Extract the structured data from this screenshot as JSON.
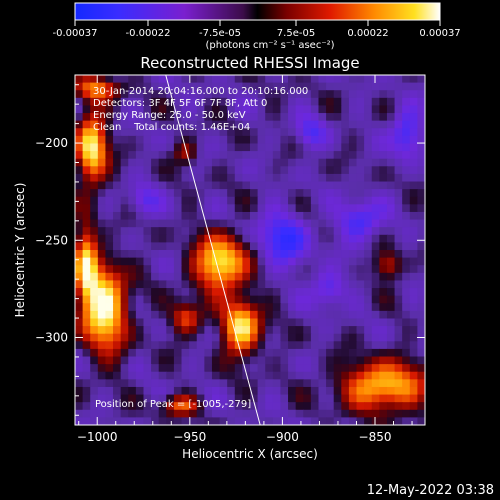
{
  "colorbar": {
    "ticks": [
      "-0.00037",
      "-0.00022",
      "-7.5e-05",
      "7.5e-05",
      "0.00022",
      "0.00037"
    ],
    "units_line": "(photons cm⁻² s⁻¹ asec⁻²)"
  },
  "footer": {
    "timestamp": "12-May-2022 03:38"
  },
  "chart_data": {
    "type": "heatmap",
    "title": "Reconstructed RHESSI Image",
    "xlabel": "Heliocentric X (arcsec)",
    "ylabel": "Heliocentric Y (arcsec)",
    "xlim": [
      -1012,
      -823
    ],
    "ylim": [
      -345,
      -165
    ],
    "xticks": [
      -1000,
      -950,
      -900,
      -850
    ],
    "yticks": [
      -200,
      -250,
      -300
    ],
    "xtick_labels": [
      "−1000",
      "−950",
      "−900",
      "−850"
    ],
    "ytick_labels": [
      "−200",
      "−250",
      "−300"
    ],
    "value_range": [
      -0.00037,
      0.00037
    ],
    "colormap": "red-temperature-diverging",
    "annotations": [
      "30-Jan-2014 20:04:16.000 to 20:10:16.000",
      "Detectors: 3F 4F 5F 6F 7F 8F, Att 0",
      "Energy Range: 25.0 - 50.0 keV",
      "Clean    Total counts: 1.46E+04"
    ],
    "peak_label": "Position of Peak = [-1005,-279]",
    "peak": [
      -1005,
      -279
    ],
    "limb_line": [
      [
        -963,
        -165
      ],
      [
        -912,
        -345
      ]
    ],
    "bright_regions": [
      {
        "x": -1003,
        "y": -203,
        "rx": 8,
        "ry": 18,
        "level": 0.95
      },
      {
        "x": -996,
        "y": -285,
        "rx": 12,
        "ry": 22,
        "level": 1.0
      },
      {
        "x": -1006,
        "y": -262,
        "rx": 6,
        "ry": 20,
        "level": 0.75
      },
      {
        "x": -933,
        "y": -262,
        "rx": 14,
        "ry": 14,
        "level": 0.95
      },
      {
        "x": -922,
        "y": -295,
        "rx": 10,
        "ry": 14,
        "level": 0.9
      },
      {
        "x": -952,
        "y": -290,
        "rx": 8,
        "ry": 8,
        "level": 0.55
      },
      {
        "x": -845,
        "y": -325,
        "rx": 22,
        "ry": 12,
        "level": 0.85
      },
      {
        "x": -843,
        "y": -263,
        "rx": 7,
        "ry": 7,
        "level": 0.45
      },
      {
        "x": -952,
        "y": -205,
        "rx": 6,
        "ry": 6,
        "level": 0.35
      },
      {
        "x": -1000,
        "y": -172,
        "rx": 12,
        "ry": 6,
        "level": 0.55
      },
      {
        "x": -955,
        "y": -335,
        "rx": 10,
        "ry": 5,
        "level": 0.5
      }
    ],
    "dark_regions": [
      {
        "x": -900,
        "y": -250,
        "rx": 14,
        "ry": 14,
        "level": -0.5
      },
      {
        "x": -858,
        "y": -240,
        "rx": 12,
        "ry": 10,
        "level": -0.45
      },
      {
        "x": -875,
        "y": -275,
        "rx": 9,
        "ry": 9,
        "level": -0.4
      },
      {
        "x": -833,
        "y": -195,
        "rx": 8,
        "ry": 12,
        "level": -0.5
      },
      {
        "x": -885,
        "y": -195,
        "rx": 8,
        "ry": 8,
        "level": -0.35
      },
      {
        "x": -975,
        "y": -230,
        "rx": 8,
        "ry": 8,
        "level": -0.3
      }
    ]
  }
}
